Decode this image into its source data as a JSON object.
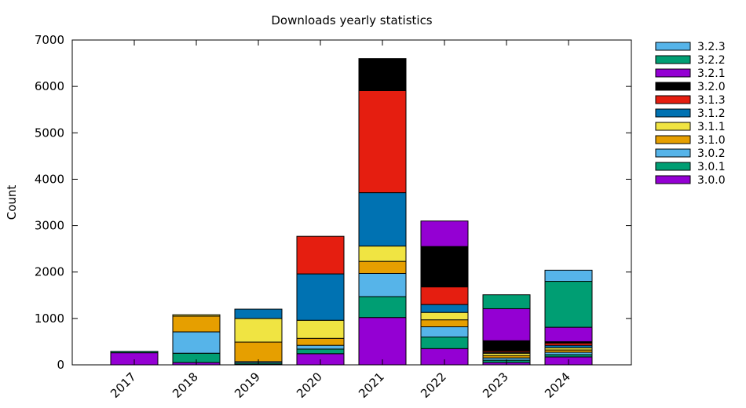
{
  "chart_data": {
    "type": "bar",
    "stacked": true,
    "title": "Downloads yearly statistics",
    "xlabel": "",
    "ylabel": "Count",
    "ylim": [
      0,
      7000
    ],
    "yticks": [
      0,
      1000,
      2000,
      3000,
      4000,
      5000,
      6000,
      7000
    ],
    "categories": [
      "2017",
      "2018",
      "2019",
      "2020",
      "2021",
      "2022",
      "2023",
      "2024"
    ],
    "legend_position": "outside-right",
    "series": [
      {
        "name": "3.0.0",
        "color": "#9400d3",
        "values": [
          260,
          50,
          10,
          240,
          1020,
          350,
          50,
          170
        ]
      },
      {
        "name": "3.0.1",
        "color": "#009e73",
        "values": [
          30,
          200,
          30,
          100,
          450,
          250,
          50,
          50
        ]
      },
      {
        "name": "3.0.2",
        "color": "#56b4e9",
        "values": [
          0,
          460,
          30,
          80,
          500,
          220,
          50,
          50
        ]
      },
      {
        "name": "3.1.0",
        "color": "#e69f00",
        "values": [
          0,
          340,
          420,
          150,
          260,
          150,
          50,
          50
        ]
      },
      {
        "name": "3.1.1",
        "color": "#f0e442",
        "values": [
          0,
          30,
          510,
          390,
          330,
          160,
          50,
          50
        ]
      },
      {
        "name": "3.1.2",
        "color": "#0072b2",
        "values": [
          0,
          0,
          200,
          1000,
          1150,
          170,
          20,
          50
        ]
      },
      {
        "name": "3.1.3",
        "color": "#e51e10",
        "values": [
          0,
          0,
          0,
          810,
          2200,
          380,
          30,
          50
        ]
      },
      {
        "name": "3.2.0",
        "color": "#000000",
        "values": [
          0,
          0,
          0,
          0,
          690,
          870,
          220,
          30
        ]
      },
      {
        "name": "3.2.1",
        "color": "#9400d3",
        "values": [
          0,
          0,
          0,
          0,
          0,
          550,
          690,
          310
        ]
      },
      {
        "name": "3.2.2",
        "color": "#009e73",
        "values": [
          0,
          0,
          0,
          0,
          0,
          0,
          300,
          990
        ]
      },
      {
        "name": "3.2.3",
        "color": "#56b4e9",
        "values": [
          0,
          0,
          0,
          0,
          0,
          0,
          0,
          240
        ]
      }
    ]
  }
}
